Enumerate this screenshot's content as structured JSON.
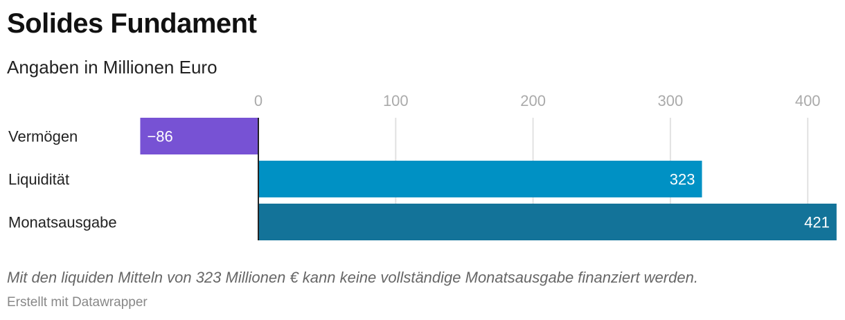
{
  "chart_data": {
    "type": "bar",
    "orientation": "horizontal",
    "title": "Solides Fundament",
    "subtitle": "Angaben in Millionen Euro",
    "categories": [
      "Vermögen",
      "Liquidität",
      "Monatsausgabe"
    ],
    "values": [
      -86,
      323,
      421
    ],
    "value_labels": [
      "−86",
      "323",
      "421"
    ],
    "colors": [
      "#7752d4",
      "#0091c4",
      "#137399"
    ],
    "xticks": [
      0,
      100,
      200,
      300,
      400
    ],
    "xlim": [
      -86,
      421
    ],
    "grid": true,
    "note": "Mit den liquiden Mitteln von 323 Millionen € kann keine vollständige Monatsausgabe finanziert werden.",
    "credit": "Erstellt mit Datawrapper"
  }
}
